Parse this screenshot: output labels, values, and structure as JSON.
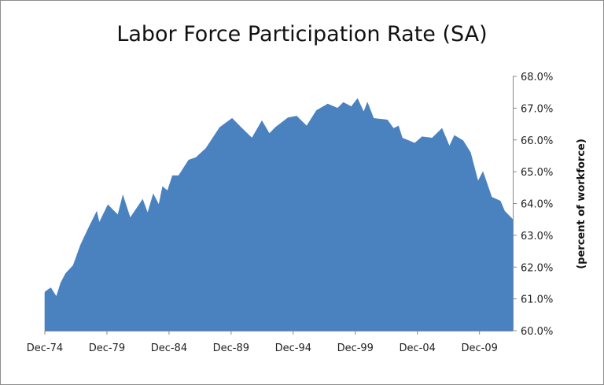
{
  "chart_data": {
    "type": "area",
    "title": "Labor Force Participation Rate (SA)",
    "xlabel": "",
    "ylabel": "(percent of workforce)",
    "ylim": [
      60,
      68
    ],
    "xlim": [
      1974.92,
      2012.6
    ],
    "y_ticks": [
      "60.0%",
      "61.0%",
      "62.0%",
      "63.0%",
      "64.0%",
      "65.0%",
      "66.0%",
      "67.0%",
      "68.0%"
    ],
    "x_ticks": [
      {
        "label": "Dec-74",
        "year": 1974.92
      },
      {
        "label": "Dec-79",
        "year": 1979.92
      },
      {
        "label": "Dec-84",
        "year": 1984.92
      },
      {
        "label": "Dec-89",
        "year": 1989.92
      },
      {
        "label": "Dec-94",
        "year": 1994.92
      },
      {
        "label": "Dec-99",
        "year": 1999.92
      },
      {
        "label": "Dec-04",
        "year": 2004.92
      },
      {
        "label": "Dec-09",
        "year": 2009.92
      }
    ],
    "y_axis_side": "right",
    "grid": false,
    "color": "#4a82c0",
    "series": [
      {
        "name": "Labor Force Participation Rate",
        "points": [
          [
            1974.92,
            61.2
          ],
          [
            1975.0,
            61.24
          ],
          [
            1975.4,
            61.35
          ],
          [
            1975.85,
            61.07
          ],
          [
            1976.2,
            61.5
          ],
          [
            1976.6,
            61.8
          ],
          [
            1977.2,
            62.05
          ],
          [
            1977.8,
            62.7
          ],
          [
            1978.4,
            63.2
          ],
          [
            1979.1,
            63.75
          ],
          [
            1979.3,
            63.4
          ],
          [
            1980.0,
            63.96
          ],
          [
            1980.8,
            63.64
          ],
          [
            1981.2,
            64.26
          ],
          [
            1981.8,
            63.55
          ],
          [
            1982.8,
            64.13
          ],
          [
            1983.2,
            63.7
          ],
          [
            1983.65,
            64.3
          ],
          [
            1984.1,
            63.96
          ],
          [
            1984.4,
            64.53
          ],
          [
            1984.8,
            64.4
          ],
          [
            1985.2,
            64.88
          ],
          [
            1985.7,
            64.88
          ],
          [
            1986.5,
            65.37
          ],
          [
            1987.1,
            65.45
          ],
          [
            1987.9,
            65.74
          ],
          [
            1989.0,
            66.39
          ],
          [
            1990.0,
            66.68
          ],
          [
            1990.7,
            66.4
          ],
          [
            1991.6,
            66.06
          ],
          [
            1992.4,
            66.6
          ],
          [
            1993.0,
            66.2
          ],
          [
            1993.5,
            66.4
          ],
          [
            1994.5,
            66.7
          ],
          [
            1995.2,
            66.75
          ],
          [
            1996.0,
            66.44
          ],
          [
            1996.8,
            66.93
          ],
          [
            1997.7,
            67.13
          ],
          [
            1998.5,
            67.0
          ],
          [
            1998.95,
            67.18
          ],
          [
            1999.6,
            67.05
          ],
          [
            2000.1,
            67.3
          ],
          [
            2000.6,
            66.88
          ],
          [
            2000.9,
            67.18
          ],
          [
            2001.4,
            66.68
          ],
          [
            2002.5,
            66.63
          ],
          [
            2003.0,
            66.36
          ],
          [
            2003.4,
            66.44
          ],
          [
            2003.7,
            66.06
          ],
          [
            2004.7,
            65.9
          ],
          [
            2005.3,
            66.1
          ],
          [
            2006.1,
            66.06
          ],
          [
            2006.9,
            66.36
          ],
          [
            2007.5,
            65.8
          ],
          [
            2007.9,
            66.14
          ],
          [
            2008.6,
            65.98
          ],
          [
            2009.2,
            65.6
          ],
          [
            2009.8,
            64.7
          ],
          [
            2010.2,
            65.0
          ],
          [
            2010.9,
            64.2
          ],
          [
            2011.6,
            64.08
          ],
          [
            2011.95,
            63.76
          ],
          [
            2012.6,
            63.5
          ]
        ]
      }
    ]
  }
}
